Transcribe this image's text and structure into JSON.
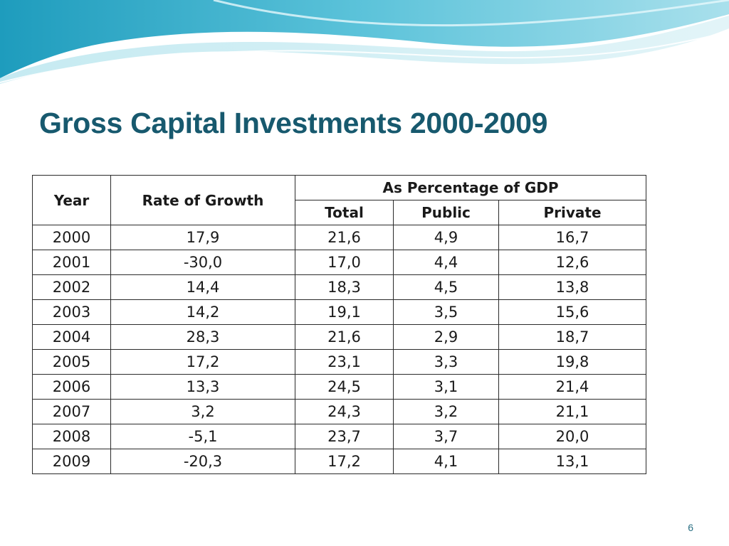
{
  "slide": {
    "title": "Gross Capital Investments 2000-2009",
    "page_number": "6"
  },
  "theme": {
    "title_color": "#17596e",
    "wave_colors": [
      "#2fa6c4",
      "#7fd0e0",
      "#bfe8f0"
    ]
  },
  "table": {
    "headers": {
      "year": "Year",
      "rate_of_growth": "Rate of Growth",
      "group": "As Percentage of GDP",
      "total": "Total",
      "public": "Public",
      "private": "Private"
    },
    "rows": [
      [
        "2000",
        "17,9",
        "21,6",
        "4,9",
        "16,7"
      ],
      [
        "2001",
        "-30,0",
        "17,0",
        "4,4",
        "12,6"
      ],
      [
        "2002",
        "14,4",
        "18,3",
        "4,5",
        "13,8"
      ],
      [
        "2003",
        "14,2",
        "19,1",
        "3,5",
        "15,6"
      ],
      [
        "2004",
        "28,3",
        "21,6",
        "2,9",
        "18,7"
      ],
      [
        "2005",
        "17,2",
        "23,1",
        "3,3",
        "19,8"
      ],
      [
        "2006",
        "13,3",
        "24,5",
        "3,1",
        "21,4"
      ],
      [
        "2007",
        "3,2",
        "24,3",
        "3,2",
        "21,1"
      ],
      [
        "2008",
        "-5,1",
        "23,7",
        "3,7",
        "20,0"
      ],
      [
        "2009",
        "-20,3",
        "17,2",
        "4,1",
        "13,1"
      ]
    ]
  }
}
